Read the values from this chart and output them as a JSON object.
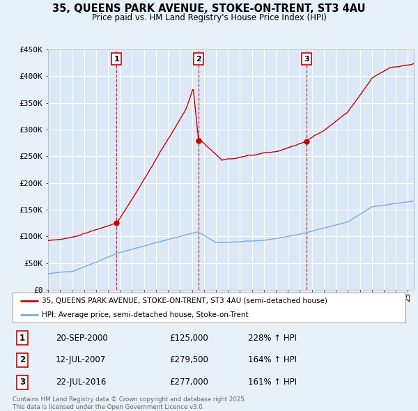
{
  "title": "35, QUEENS PARK AVENUE, STOKE-ON-TRENT, ST3 4AU",
  "subtitle": "Price paid vs. HM Land Registry's House Price Index (HPI)",
  "bg_color": "#e8f0f8",
  "plot_bg_color": "#dce8f5",
  "grid_color": "#c8d8ea",
  "red_line_color": "#cc0000",
  "blue_line_color": "#7aaadd",
  "ylim": [
    0,
    450000
  ],
  "yticks": [
    0,
    50000,
    100000,
    150000,
    200000,
    250000,
    300000,
    350000,
    400000,
    450000
  ],
  "ytick_labels": [
    "£0",
    "£50K",
    "£100K",
    "£150K",
    "£200K",
    "£250K",
    "£300K",
    "£350K",
    "£400K",
    "£450K"
  ],
  "legend_label_red": "35, QUEENS PARK AVENUE, STOKE-ON-TRENT, ST3 4AU (semi-detached house)",
  "legend_label_blue": "HPI: Average price, semi-detached house, Stoke-on-Trent",
  "sale_years": [
    2000.72,
    2007.53,
    2016.55
  ],
  "sale_prices": [
    125000,
    279500,
    277000
  ],
  "sale_labels": [
    "1",
    "2",
    "3"
  ],
  "footnote": "Contains HM Land Registry data © Crown copyright and database right 2025.\nThis data is licensed under the Open Government Licence v3.0.",
  "table_rows": [
    [
      "1",
      "20-SEP-2000",
      "£125,000",
      "228% ↑ HPI"
    ],
    [
      "2",
      "12-JUL-2007",
      "£279,500",
      "164% ↑ HPI"
    ],
    [
      "3",
      "22-JUL-2016",
      "£277,000",
      "161% ↑ HPI"
    ]
  ],
  "xmin": 1995,
  "xmax": 2025.5
}
